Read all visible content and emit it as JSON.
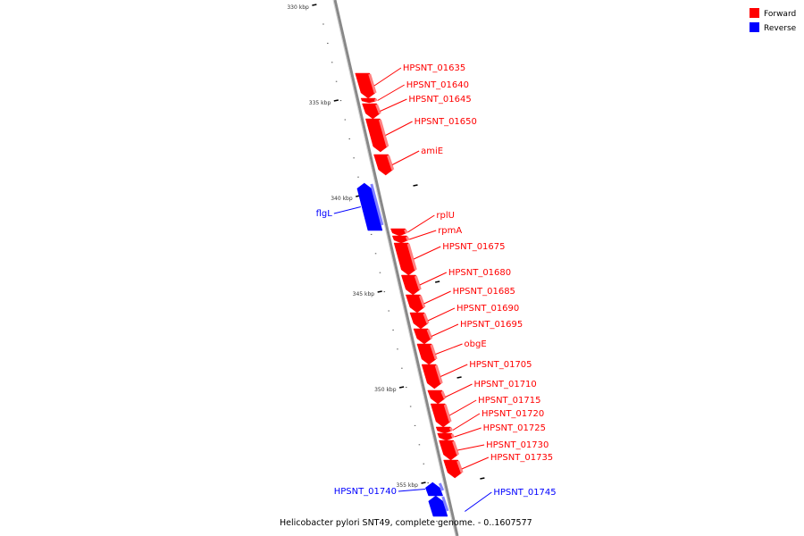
{
  "caption": "Helicobacter pylori SNT49, complete genome. - 0..1607577",
  "legend": [
    {
      "label": "Forward",
      "color": "#ff0000"
    },
    {
      "label": "Reverse",
      "color": "#0000ff"
    }
  ],
  "colors": {
    "forward": "#ff0000",
    "forward_light": "#ff8080",
    "reverse": "#0000ff",
    "reverse_light": "#8080ff",
    "backbone": "#888888"
  },
  "ticks": [
    "330 kbp",
    "335 kbp",
    "340 kbp",
    "345 kbp",
    "350 kbp",
    "355 kbp"
  ],
  "genes": [
    {
      "name": "HPSNT_01635",
      "strand": "forward"
    },
    {
      "name": "HPSNT_01640",
      "strand": "forward"
    },
    {
      "name": "HPSNT_01645",
      "strand": "forward"
    },
    {
      "name": "HPSNT_01650",
      "strand": "forward"
    },
    {
      "name": "amiE",
      "strand": "forward"
    },
    {
      "name": "flgL",
      "strand": "reverse"
    },
    {
      "name": "rplU",
      "strand": "forward"
    },
    {
      "name": "rpmA",
      "strand": "forward"
    },
    {
      "name": "HPSNT_01675",
      "strand": "forward"
    },
    {
      "name": "HPSNT_01680",
      "strand": "forward"
    },
    {
      "name": "HPSNT_01685",
      "strand": "forward"
    },
    {
      "name": "HPSNT_01690",
      "strand": "forward"
    },
    {
      "name": "HPSNT_01695",
      "strand": "forward"
    },
    {
      "name": "obgE",
      "strand": "forward"
    },
    {
      "name": "HPSNT_01705",
      "strand": "forward"
    },
    {
      "name": "HPSNT_01710",
      "strand": "forward"
    },
    {
      "name": "HPSNT_01715",
      "strand": "forward"
    },
    {
      "name": "HPSNT_01720",
      "strand": "forward"
    },
    {
      "name": "HPSNT_01725",
      "strand": "forward"
    },
    {
      "name": "HPSNT_01730",
      "strand": "forward"
    },
    {
      "name": "HPSNT_01735",
      "strand": "forward"
    },
    {
      "name": "HPSNT_01740",
      "strand": "reverse"
    },
    {
      "name": "HPSNT_01745",
      "strand": "reverse"
    }
  ]
}
